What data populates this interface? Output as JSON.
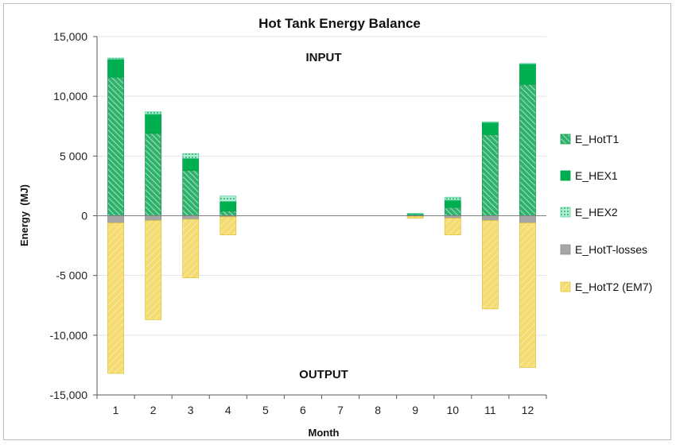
{
  "chart_data": {
    "type": "bar",
    "stacked": true,
    "title": "Hot Tank Energy Balance",
    "xlabel": "Month",
    "ylabel": "Energy  (MJ)",
    "ylim": [
      -15000,
      15000
    ],
    "yticks": [
      15000,
      10000,
      5000,
      0,
      -5000,
      -10000,
      -15000
    ],
    "ytick_labels": [
      "15,000",
      "10,000",
      "5 000",
      "0",
      "-5 000",
      "-10,000",
      "-15,000"
    ],
    "grid": true,
    "legend_position": "right",
    "annotations": [
      "INPUT",
      "OUTPUT"
    ],
    "categories": [
      "1",
      "2",
      "3",
      "4",
      "5",
      "6",
      "7",
      "8",
      "9",
      "10",
      "11",
      "12"
    ],
    "series": [
      {
        "name": "E_HotT1",
        "color": "#1faa5e",
        "hatch": "diagonal-dense",
        "values": [
          11600,
          6900,
          3800,
          400,
          0,
          0,
          0,
          0,
          100,
          700,
          6800,
          11000
        ]
      },
      {
        "name": "E_HEX1",
        "color": "#00b050",
        "hatch": "solid",
        "values": [
          1500,
          1600,
          1000,
          800,
          0,
          0,
          0,
          0,
          50,
          600,
          1000,
          1700
        ]
      },
      {
        "name": "E_HEX2",
        "color": "#8fe0c0",
        "hatch": "dotted",
        "values": [
          100,
          200,
          400,
          450,
          0,
          0,
          0,
          0,
          50,
          250,
          50,
          50
        ]
      },
      {
        "name": "E_HotT-losses",
        "color": "#a6a6a6",
        "hatch": "solid",
        "values": [
          -600,
          -400,
          -300,
          -100,
          0,
          0,
          0,
          0,
          -50,
          -200,
          -400,
          -600
        ]
      },
      {
        "name": "E_HotT2 (EM7)",
        "color": "#f2d65c",
        "hatch": "diagonal",
        "values": [
          -12600,
          -8300,
          -4900,
          -1500,
          0,
          0,
          0,
          0,
          -150,
          -1400,
          -7400,
          -12100
        ]
      }
    ]
  }
}
